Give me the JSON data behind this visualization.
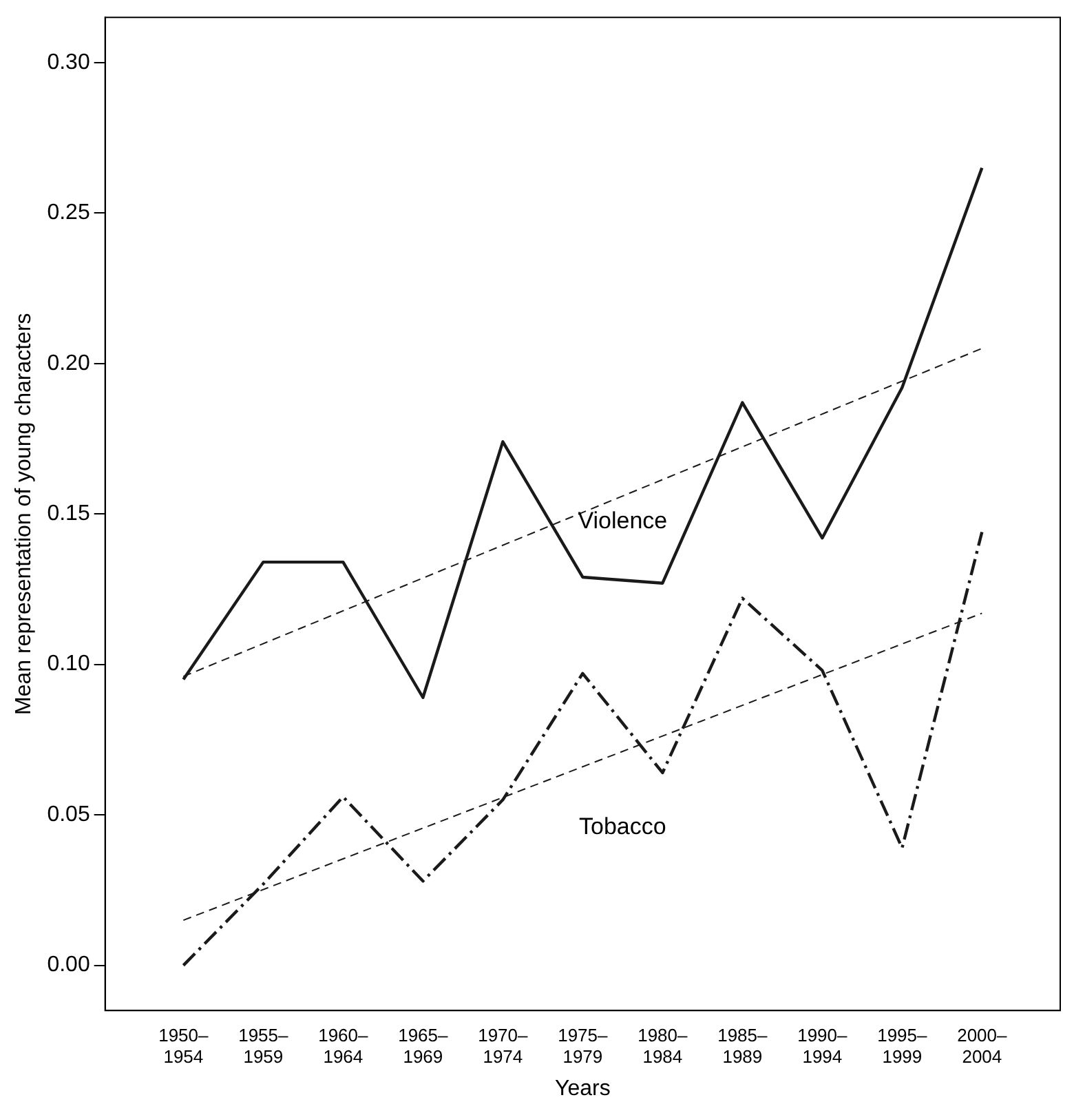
{
  "chart_data": {
    "type": "line",
    "xlabel": "Years",
    "ylabel": "Mean representation of young characters",
    "categories": [
      "1950–1954",
      "1955–1959",
      "1960–1964",
      "1965–1969",
      "1970–1974",
      "1975–1979",
      "1980–1984",
      "1985–1989",
      "1990–1994",
      "1995–1999",
      "2000–2004"
    ],
    "series": [
      {
        "name": "Violence",
        "color": "#1a1a1a",
        "line_style": "solid",
        "values": [
          0.095,
          0.134,
          0.134,
          0.089,
          0.174,
          0.129,
          0.127,
          0.187,
          0.142,
          0.192,
          0.265
        ]
      },
      {
        "name": "Tobacco",
        "color": "#1a1a1a",
        "line_style": "dashed",
        "values": [
          0.0,
          0.027,
          0.056,
          0.028,
          0.055,
          0.097,
          0.064,
          0.122,
          0.098,
          0.039,
          0.144
        ]
      },
      {
        "type": "line",
        "color": "#1a1a1a",
        "line_style": "dashed",
        "x": [
          "1950–1954",
          "2000–2004"
        ],
        "values": [
          0.096,
          0.205
        ]
      },
      {
        "type": "line",
        "color": "#1a1a1a",
        "line_style": "dashed",
        "x": [
          "1950–1954",
          "2000–2004"
        ],
        "values": [
          0.015,
          0.117
        ]
      }
    ],
    "ylim": [
      -0.015,
      0.315
    ],
    "yticks": [
      {
        "value": 0,
        "label": "0.00"
      },
      {
        "value": 0.05,
        "label": "0.05"
      },
      {
        "value": 0.1,
        "label": "0.10"
      },
      {
        "value": 0.15,
        "label": "0.15"
      },
      {
        "value": 0.2,
        "label": "0.20"
      },
      {
        "value": 0.25,
        "label": "0.25"
      },
      {
        "value": 0.3,
        "label": "0.30"
      }
    ],
    "grid": false,
    "legend": false,
    "marker": "none"
  }
}
